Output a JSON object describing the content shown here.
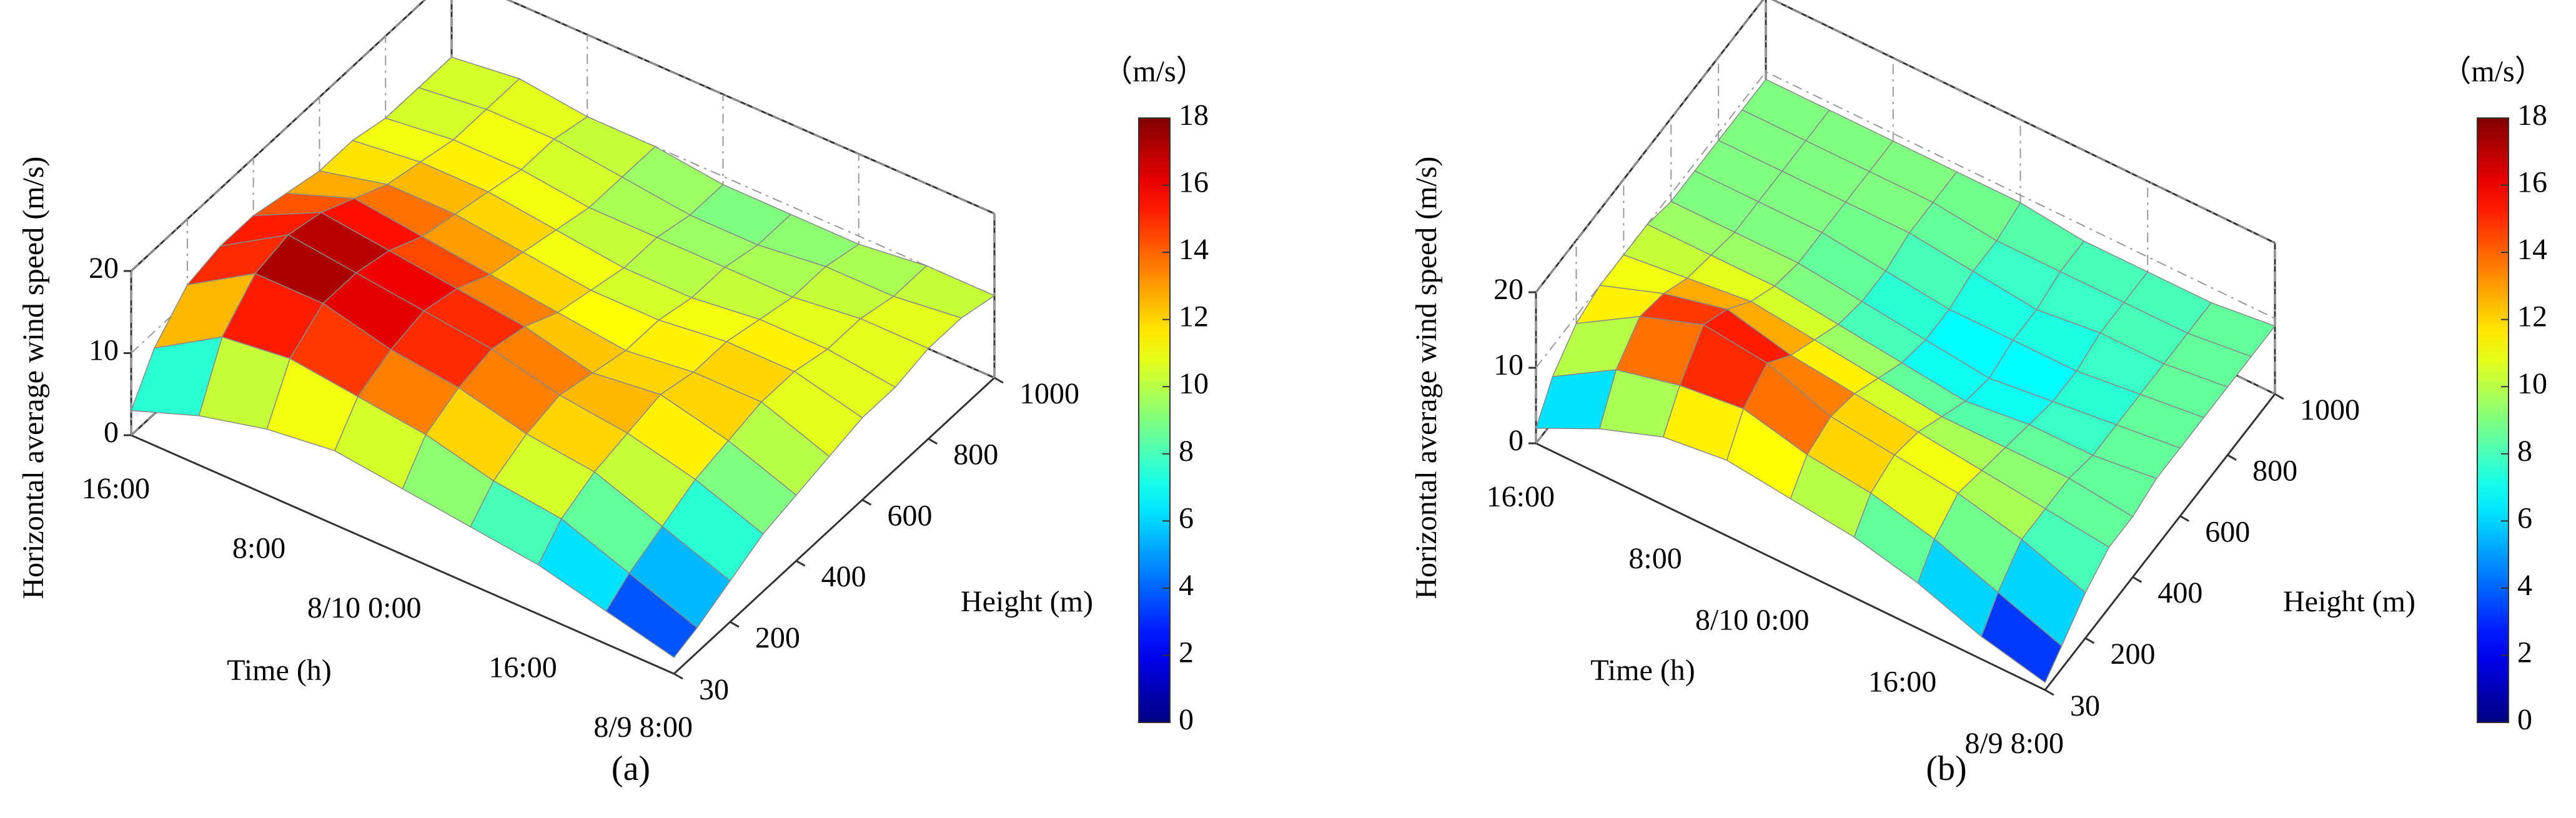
{
  "chart_data": [
    {
      "type": "surface",
      "panel_label": "(a)",
      "zlabel": "Horizontal average wind speed (m/s)",
      "xlabel": "Time (h)",
      "ylabel": "Height (m)",
      "colorbar_label": "（m/s）",
      "time_labels": [
        "8/9 8:00",
        null,
        "16:00",
        null,
        "8/10 0:00",
        null,
        "8:00",
        null,
        "16:00"
      ],
      "heights": [
        30,
        100,
        200,
        300,
        400,
        500,
        600,
        700,
        800,
        900,
        1000
      ],
      "ylim": [
        30,
        1000
      ],
      "yticks": [
        30,
        200,
        400,
        600,
        800,
        1000
      ],
      "zlim": [
        0,
        20
      ],
      "zticks": [
        0,
        10,
        20
      ],
      "clim": [
        0,
        18
      ],
      "cticks": [
        0,
        2,
        4,
        6,
        8,
        10,
        12,
        14,
        16,
        18
      ],
      "colormap": "jet",
      "grid": true,
      "z": [
        [
          2,
          3,
          5,
          7,
          8,
          9,
          10,
          10,
          11,
          11,
          10
        ],
        [
          4,
          6,
          8,
          10,
          11,
          12,
          12,
          11,
          11,
          10,
          10
        ],
        [
          6,
          9,
          11,
          12,
          13,
          12,
          12,
          11,
          10,
          10,
          9
        ],
        [
          7,
          10,
          12,
          13,
          12,
          11,
          11,
          10,
          10,
          9,
          9
        ],
        [
          8,
          12,
          14,
          15,
          14,
          12,
          11,
          10,
          10,
          9,
          9
        ],
        [
          9,
          13,
          15,
          16,
          15,
          13,
          12,
          11,
          10,
          10,
          10
        ],
        [
          8,
          14,
          17,
          17,
          16,
          14,
          13,
          12,
          11,
          11,
          10
        ],
        [
          6,
          13,
          17,
          18,
          17,
          15,
          13,
          12,
          11,
          11,
          11
        ],
        [
          3,
          8,
          12,
          13,
          13,
          12,
          11,
          11,
          10,
          10,
          10
        ]
      ]
    },
    {
      "type": "surface",
      "panel_label": "(b)",
      "zlabel": "Horizontal average wind speed (m/s)",
      "xlabel": "Time (h)",
      "ylabel": "Height (m)",
      "colorbar_label": "（m/s）",
      "time_labels": [
        "8/9 8:00",
        null,
        "16:00",
        null,
        "8/10 0:00",
        null,
        "8:00",
        null,
        "16:00"
      ],
      "heights": [
        30,
        100,
        200,
        300,
        400,
        500,
        600,
        700,
        800,
        900,
        1000
      ],
      "ylim": [
        30,
        1000
      ],
      "yticks": [
        30,
        200,
        400,
        600,
        800,
        1000
      ],
      "zlim": [
        0,
        20
      ],
      "zticks": [
        0,
        10,
        20
      ],
      "clim": [
        0,
        18
      ],
      "cticks": [
        0,
        2,
        4,
        6,
        8,
        10,
        12,
        14,
        16,
        18
      ],
      "colormap": "jet",
      "grid": true,
      "z": [
        [
          1,
          3,
          6,
          8,
          8,
          9,
          9,
          9,
          9,
          9,
          9
        ],
        [
          3,
          6,
          9,
          9,
          9,
          8,
          8,
          8,
          8,
          8,
          8
        ],
        [
          6,
          9,
          11,
          10,
          9,
          8,
          7,
          7,
          8,
          8,
          8
        ],
        [
          8,
          11,
          12,
          11,
          9,
          7,
          6,
          7,
          7,
          8,
          8
        ],
        [
          9,
          12,
          13,
          12,
          10,
          8,
          7,
          7,
          8,
          8,
          9
        ],
        [
          10,
          14,
          16,
          13,
          11,
          9,
          8,
          8,
          9,
          9,
          9
        ],
        [
          9,
          13,
          17,
          15,
          12,
          10,
          9,
          9,
          9,
          9,
          9
        ],
        [
          6,
          11,
          14,
          13,
          11,
          10,
          9,
          9,
          9,
          9,
          9
        ],
        [
          2,
          6,
          9,
          10,
          10,
          10,
          9,
          9,
          9,
          9,
          9
        ]
      ]
    }
  ]
}
